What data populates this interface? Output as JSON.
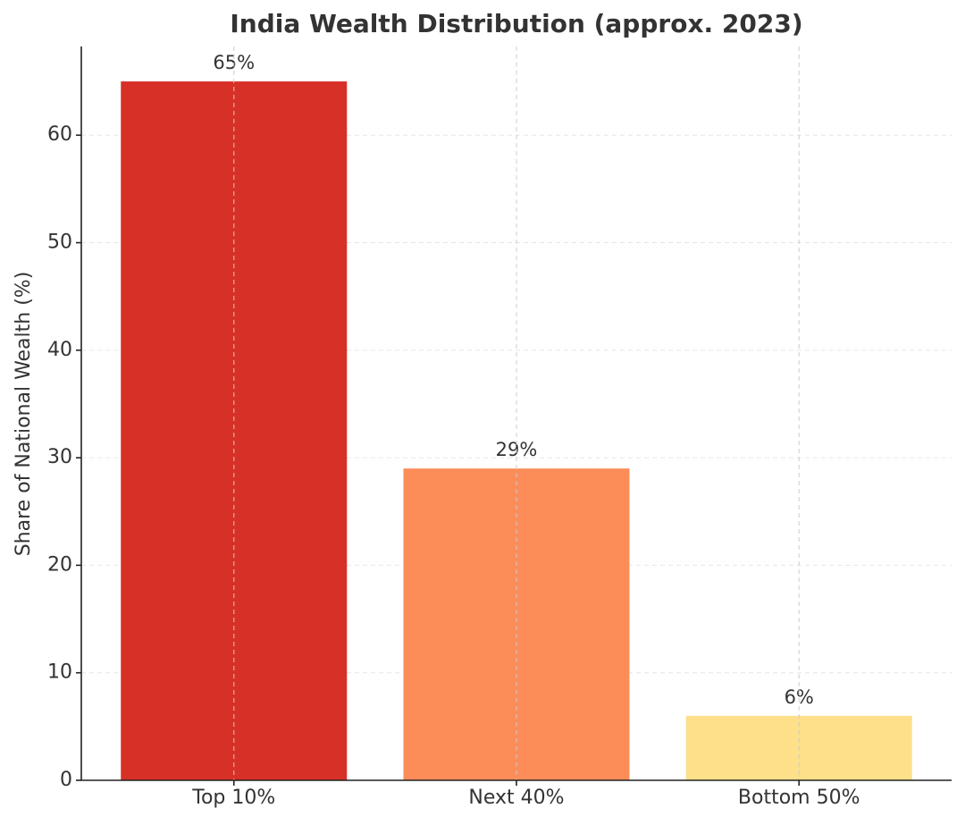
{
  "chart_data": {
    "type": "bar",
    "title": "India Wealth Distribution (approx. 2023)",
    "ylabel": "Share of National Wealth (%)",
    "categories": [
      "Top 10%",
      "Next 40%",
      "Bottom 50%"
    ],
    "values": [
      65,
      29,
      6
    ],
    "value_labels": [
      "65%",
      "29%",
      "6%"
    ],
    "colors": [
      "#d73027",
      "#fc8d59",
      "#fee08b"
    ],
    "ylim": [
      0,
      68.25
    ],
    "yticks": [
      0,
      10,
      20,
      30,
      40,
      50,
      60
    ],
    "grid": true
  }
}
